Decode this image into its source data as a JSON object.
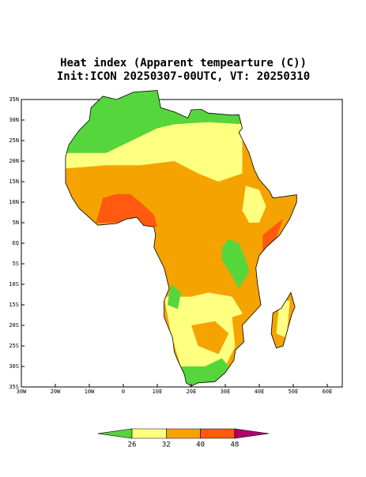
{
  "title": "Heat index (Apparent tempearture (C))",
  "subtitle": "Init:ICON 20250307-00UTC, VT: 20250310",
  "map": {
    "lon_ticks": [
      {
        "value": -30,
        "label": "30W"
      },
      {
        "value": -20,
        "label": "20W"
      },
      {
        "value": -10,
        "label": "10W"
      },
      {
        "value": 0,
        "label": "0"
      },
      {
        "value": 10,
        "label": "10E"
      },
      {
        "value": 20,
        "label": "20E"
      },
      {
        "value": 30,
        "label": "30E"
      },
      {
        "value": 40,
        "label": "40E"
      },
      {
        "value": 50,
        "label": "50E"
      },
      {
        "value": 60,
        "label": "60E"
      }
    ],
    "lat_ticks": [
      {
        "value": 35,
        "label": "35N"
      },
      {
        "value": 30,
        "label": "30N"
      },
      {
        "value": 25,
        "label": "25N"
      },
      {
        "value": 20,
        "label": "20N"
      },
      {
        "value": 15,
        "label": "15N"
      },
      {
        "value": 10,
        "label": "10N"
      },
      {
        "value": 5,
        "label": "5N"
      },
      {
        "value": 0,
        "label": "EQ"
      },
      {
        "value": -5,
        "label": "5S"
      },
      {
        "value": -10,
        "label": "10S"
      },
      {
        "value": -15,
        "label": "15S"
      },
      {
        "value": -20,
        "label": "20S"
      },
      {
        "value": -25,
        "label": "25S"
      },
      {
        "value": -30,
        "label": "30S"
      },
      {
        "value": -35,
        "label": "35S"
      }
    ],
    "colorbar": {
      "levels": [
        26,
        32,
        40,
        48
      ],
      "colors": [
        "#55d63c",
        "#ffff80",
        "#f5a300",
        "#ff5a10",
        "#b0006a"
      ]
    }
  }
}
